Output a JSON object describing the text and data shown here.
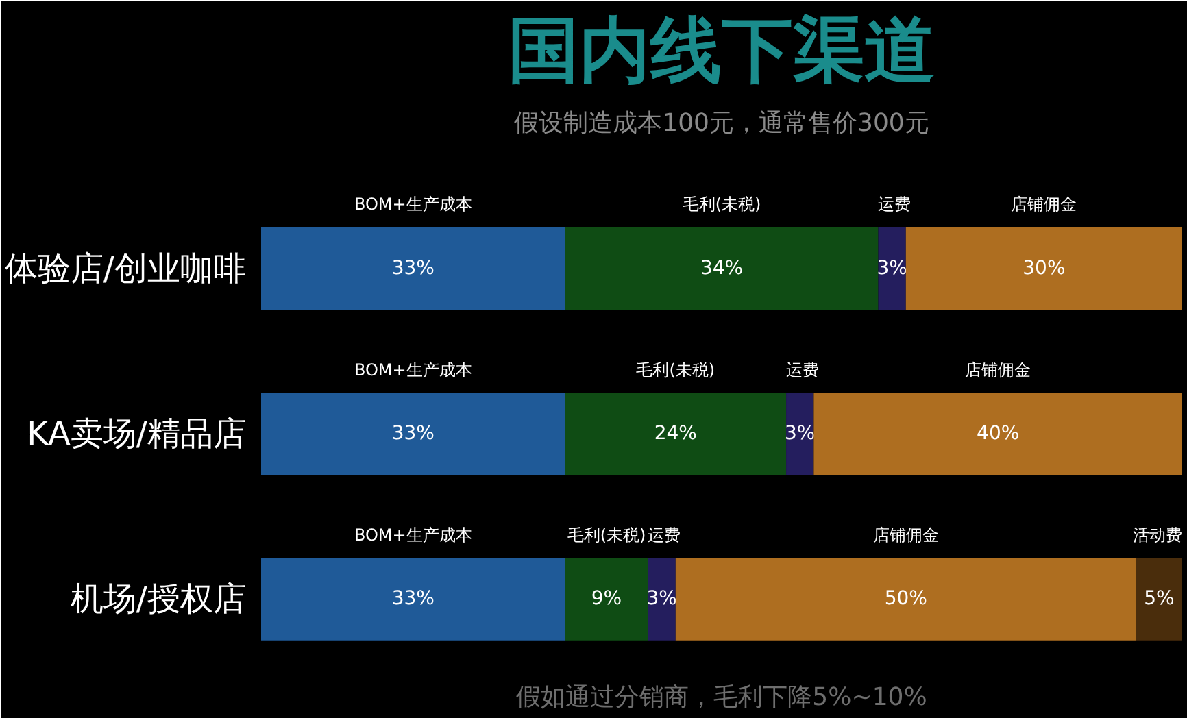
{
  "chart_data": {
    "type": "bar",
    "orientation": "horizontal",
    "stacked": true,
    "title": "国内线下渠道",
    "subtitle": "假设制造成本100元，通常售价300元",
    "annotations": [
      "假如通过分销商，毛利下降5%~10%"
    ],
    "categories": [
      "体验店/创业咖啡",
      "KA卖场/精品店",
      "机场/授权店"
    ],
    "xlim": [
      0,
      100
    ],
    "tick_labels": "y",
    "grid": false,
    "series": [
      {
        "name": "BOM+生产成本",
        "color": "#1f5a98",
        "values": [
          33,
          33,
          33
        ],
        "value_labels": [
          "33%",
          "33%",
          "33%"
        ]
      },
      {
        "name": "毛利(未税)",
        "color": "#0f4c14",
        "values": [
          34,
          24,
          9
        ],
        "value_labels": [
          "34%",
          "24%",
          "9%"
        ]
      },
      {
        "name": "运费",
        "color": "#241e5e",
        "values": [
          3,
          3,
          3
        ],
        "value_labels": [
          "3%",
          "3%",
          "3%"
        ]
      },
      {
        "name": "店铺佣金",
        "color": "#ae6e20",
        "values": [
          30,
          40,
          50
        ],
        "value_labels": [
          "30%",
          "40%",
          "50%"
        ]
      },
      {
        "name": "活动费",
        "color": "#4a2d0c",
        "values": [
          null,
          null,
          5
        ],
        "value_labels": [
          null,
          null,
          "5%"
        ]
      }
    ]
  }
}
